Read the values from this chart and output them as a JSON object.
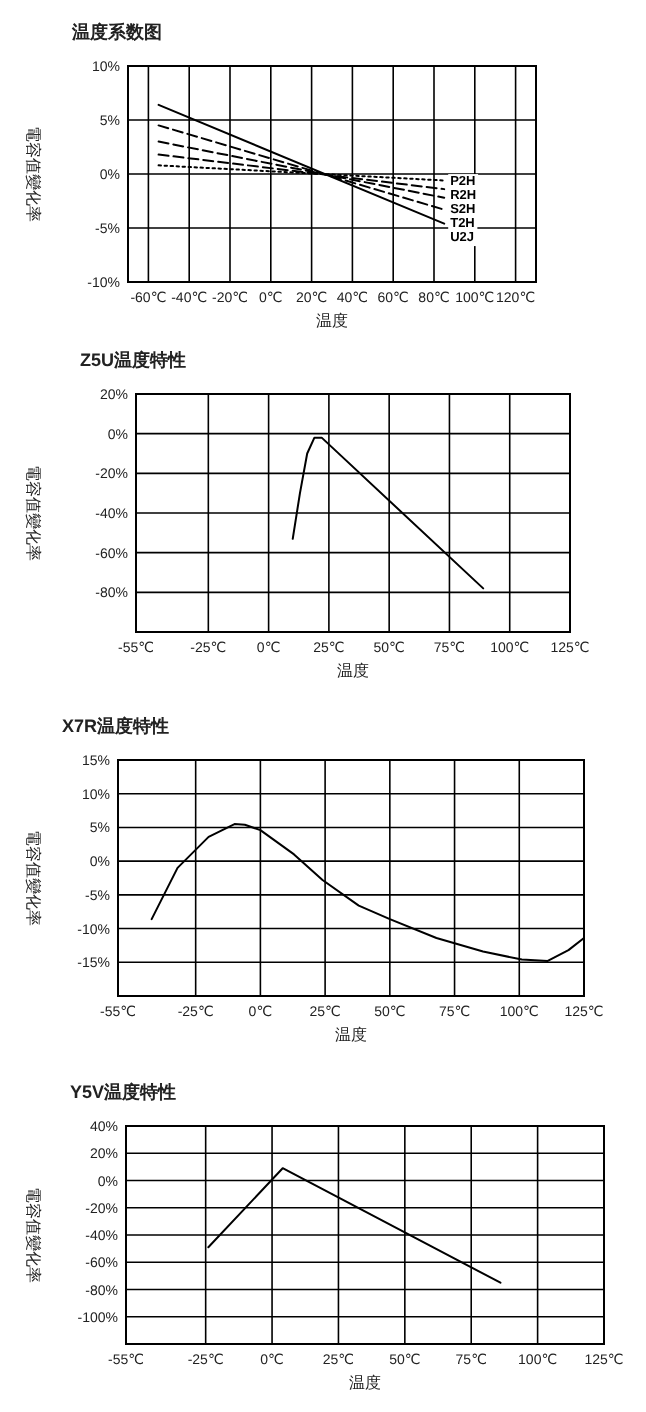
{
  "chart_data": [
    {
      "type": "line",
      "title": "温度系数图",
      "xlabel": "温度",
      "ylabel": "電容值變化率",
      "grid": true,
      "xlim": [
        -70,
        130
      ],
      "ylim": [
        -10,
        10
      ],
      "xticks": [
        {
          "value": -60,
          "label": "-60℃"
        },
        {
          "value": -40,
          "label": "-40℃"
        },
        {
          "value": -20,
          "label": "-20℃"
        },
        {
          "value": 0,
          "label": "0℃"
        },
        {
          "value": 20,
          "label": "20℃"
        },
        {
          "value": 40,
          "label": "40℃"
        },
        {
          "value": 60,
          "label": "60℃"
        },
        {
          "value": 80,
          "label": "80℃"
        },
        {
          "value": 100,
          "label": "100℃"
        },
        {
          "value": 120,
          "label": "120℃"
        }
      ],
      "yticks": [
        {
          "value": 10,
          "label": "10%"
        },
        {
          "value": 5,
          "label": "5%"
        },
        {
          "value": 0,
          "label": "0%"
        },
        {
          "value": -5,
          "label": "-5%"
        },
        {
          "value": -10,
          "label": "-10%"
        }
      ],
      "series": [
        {
          "name": "P2H",
          "color": "#000000",
          "line_style": "dotted",
          "x": [
            -55,
            85
          ],
          "values": [
            0.8,
            -0.6
          ]
        },
        {
          "name": "R2H",
          "color": "#000000",
          "line_style": "dashed",
          "x": [
            -55,
            85
          ],
          "values": [
            1.8,
            -1.4
          ]
        },
        {
          "name": "S2H",
          "color": "#000000",
          "line_style": "dashed",
          "x": [
            -55,
            85
          ],
          "values": [
            3.0,
            -2.2
          ]
        },
        {
          "name": "T2H",
          "color": "#000000",
          "line_style": "dashed",
          "x": [
            -55,
            85
          ],
          "values": [
            4.5,
            -3.3
          ]
        },
        {
          "name": "U2J",
          "color": "#000000",
          "line_style": "solid",
          "x": [
            -55,
            85
          ],
          "values": [
            6.4,
            -4.6
          ]
        }
      ]
    },
    {
      "type": "line",
      "title": "Z5U温度特性",
      "xlabel": "温度",
      "ylabel": "電容值變化率",
      "grid": true,
      "xlim": [
        -55,
        125
      ],
      "ylim": [
        -100,
        20
      ],
      "xticks": [
        {
          "value": -55,
          "label": "-55℃"
        },
        {
          "value": -25,
          "label": "-25℃"
        },
        {
          "value": 0,
          "label": "0℃"
        },
        {
          "value": 25,
          "label": "25℃"
        },
        {
          "value": 50,
          "label": "50℃"
        },
        {
          "value": 75,
          "label": "75℃"
        },
        {
          "value": 100,
          "label": "100℃"
        },
        {
          "value": 125,
          "label": "125℃"
        }
      ],
      "yticks": [
        {
          "value": 20,
          "label": "20%"
        },
        {
          "value": 0,
          "label": "0%"
        },
        {
          "value": -20,
          "label": "-20%"
        },
        {
          "value": -40,
          "label": "-40%"
        },
        {
          "value": -60,
          "label": "-60%"
        },
        {
          "value": -80,
          "label": "-80%"
        }
      ],
      "series": [
        {
          "color": "#000000",
          "x": [
            10,
            13,
            16,
            19,
            22,
            89
          ],
          "values": [
            -53,
            -30,
            -10,
            -2,
            -2,
            -78
          ]
        }
      ]
    },
    {
      "type": "line",
      "title": "X7R温度特性",
      "xlabel": "温度",
      "ylabel": "電容值變化率",
      "grid": true,
      "xlim": [
        -55,
        125
      ],
      "ylim": [
        -20,
        15
      ],
      "xticks": [
        {
          "value": -55,
          "label": "-55℃"
        },
        {
          "value": -25,
          "label": "-25℃"
        },
        {
          "value": 0,
          "label": "0℃"
        },
        {
          "value": 25,
          "label": "25℃"
        },
        {
          "value": 50,
          "label": "50℃"
        },
        {
          "value": 75,
          "label": "75℃"
        },
        {
          "value": 100,
          "label": "100℃"
        },
        {
          "value": 125,
          "label": "125℃"
        }
      ],
      "yticks": [
        {
          "value": 15,
          "label": "15%"
        },
        {
          "value": 10,
          "label": "10%"
        },
        {
          "value": 5,
          "label": "5%"
        },
        {
          "value": 0,
          "label": "0%"
        },
        {
          "value": -5,
          "label": "-5%"
        },
        {
          "value": -10,
          "label": "-10%"
        },
        {
          "value": -15,
          "label": "-15%"
        }
      ],
      "series": [
        {
          "color": "#000000",
          "x": [
            -42,
            -32,
            -20,
            -10,
            -6,
            0,
            13,
            24,
            38,
            50,
            68,
            86,
            101,
            111,
            119,
            125
          ],
          "values": [
            -8.6,
            -1,
            3.6,
            5.5,
            5.4,
            4.6,
            1,
            -2.8,
            -6.6,
            -8.6,
            -11.4,
            -13.4,
            -14.6,
            -14.8,
            -13.2,
            -11.4
          ]
        }
      ]
    },
    {
      "type": "line",
      "title": "Y5V温度特性",
      "xlabel": "温度",
      "ylabel": "電容值變化率",
      "grid": true,
      "xlim": [
        -55,
        125
      ],
      "ylim": [
        -120,
        40
      ],
      "xticks": [
        {
          "value": -55,
          "label": "-55℃"
        },
        {
          "value": -25,
          "label": "-25℃"
        },
        {
          "value": 0,
          "label": "0℃"
        },
        {
          "value": 25,
          "label": "25℃"
        },
        {
          "value": 50,
          "label": "50℃"
        },
        {
          "value": 75,
          "label": "75℃"
        },
        {
          "value": 100,
          "label": "100℃"
        },
        {
          "value": 125,
          "label": "125℃"
        }
      ],
      "yticks": [
        {
          "value": 40,
          "label": "40%"
        },
        {
          "value": 20,
          "label": "20%"
        },
        {
          "value": 0,
          "label": "0%"
        },
        {
          "value": -20,
          "label": "-20%"
        },
        {
          "value": -40,
          "label": "-40%"
        },
        {
          "value": -60,
          "label": "-60%"
        },
        {
          "value": -80,
          "label": "-80%"
        },
        {
          "value": -100,
          "label": "-100%"
        }
      ],
      "series": [
        {
          "color": "#000000",
          "x": [
            -24,
            4,
            86
          ],
          "values": [
            -49,
            9,
            -75
          ]
        }
      ]
    }
  ]
}
